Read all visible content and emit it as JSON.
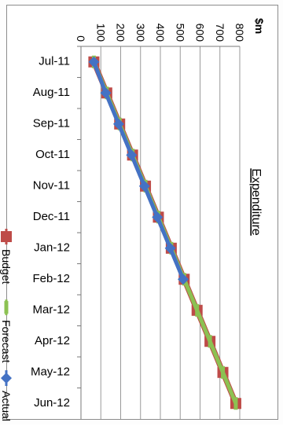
{
  "chart_data": {
    "type": "line",
    "orientation": "rotated-90",
    "title": "Expenditure",
    "ylabel": "$m",
    "xlabel": "",
    "categories": [
      "Jul-11",
      "Aug-11",
      "Sep-11",
      "Oct-11",
      "Nov-11",
      "Dec-11",
      "Jan-12",
      "Feb-12",
      "Mar-12",
      "Apr-12",
      "May-12",
      "Jun-12"
    ],
    "ylim": [
      0,
      800
    ],
    "yticks": [
      0,
      100,
      200,
      300,
      400,
      500,
      600,
      700,
      800
    ],
    "grid": true,
    "legend_position": "bottom",
    "series": [
      {
        "name": "Budget",
        "color": "#be4b48",
        "marker": "square",
        "values": [
          65,
          130,
          195,
          260,
          325,
          390,
          455,
          520,
          585,
          650,
          715,
          780
        ]
      },
      {
        "name": "Forecast",
        "color": "#8cc152",
        "marker": "dash",
        "values": [
          65,
          130,
          195,
          260,
          325,
          390,
          455,
          520,
          585,
          650,
          715,
          780
        ]
      },
      {
        "name": "Actual",
        "color": "#4472c4",
        "marker": "diamond",
        "values": [
          65,
          125,
          190,
          255,
          320,
          385,
          450,
          515,
          null,
          null,
          null,
          null
        ]
      }
    ]
  }
}
